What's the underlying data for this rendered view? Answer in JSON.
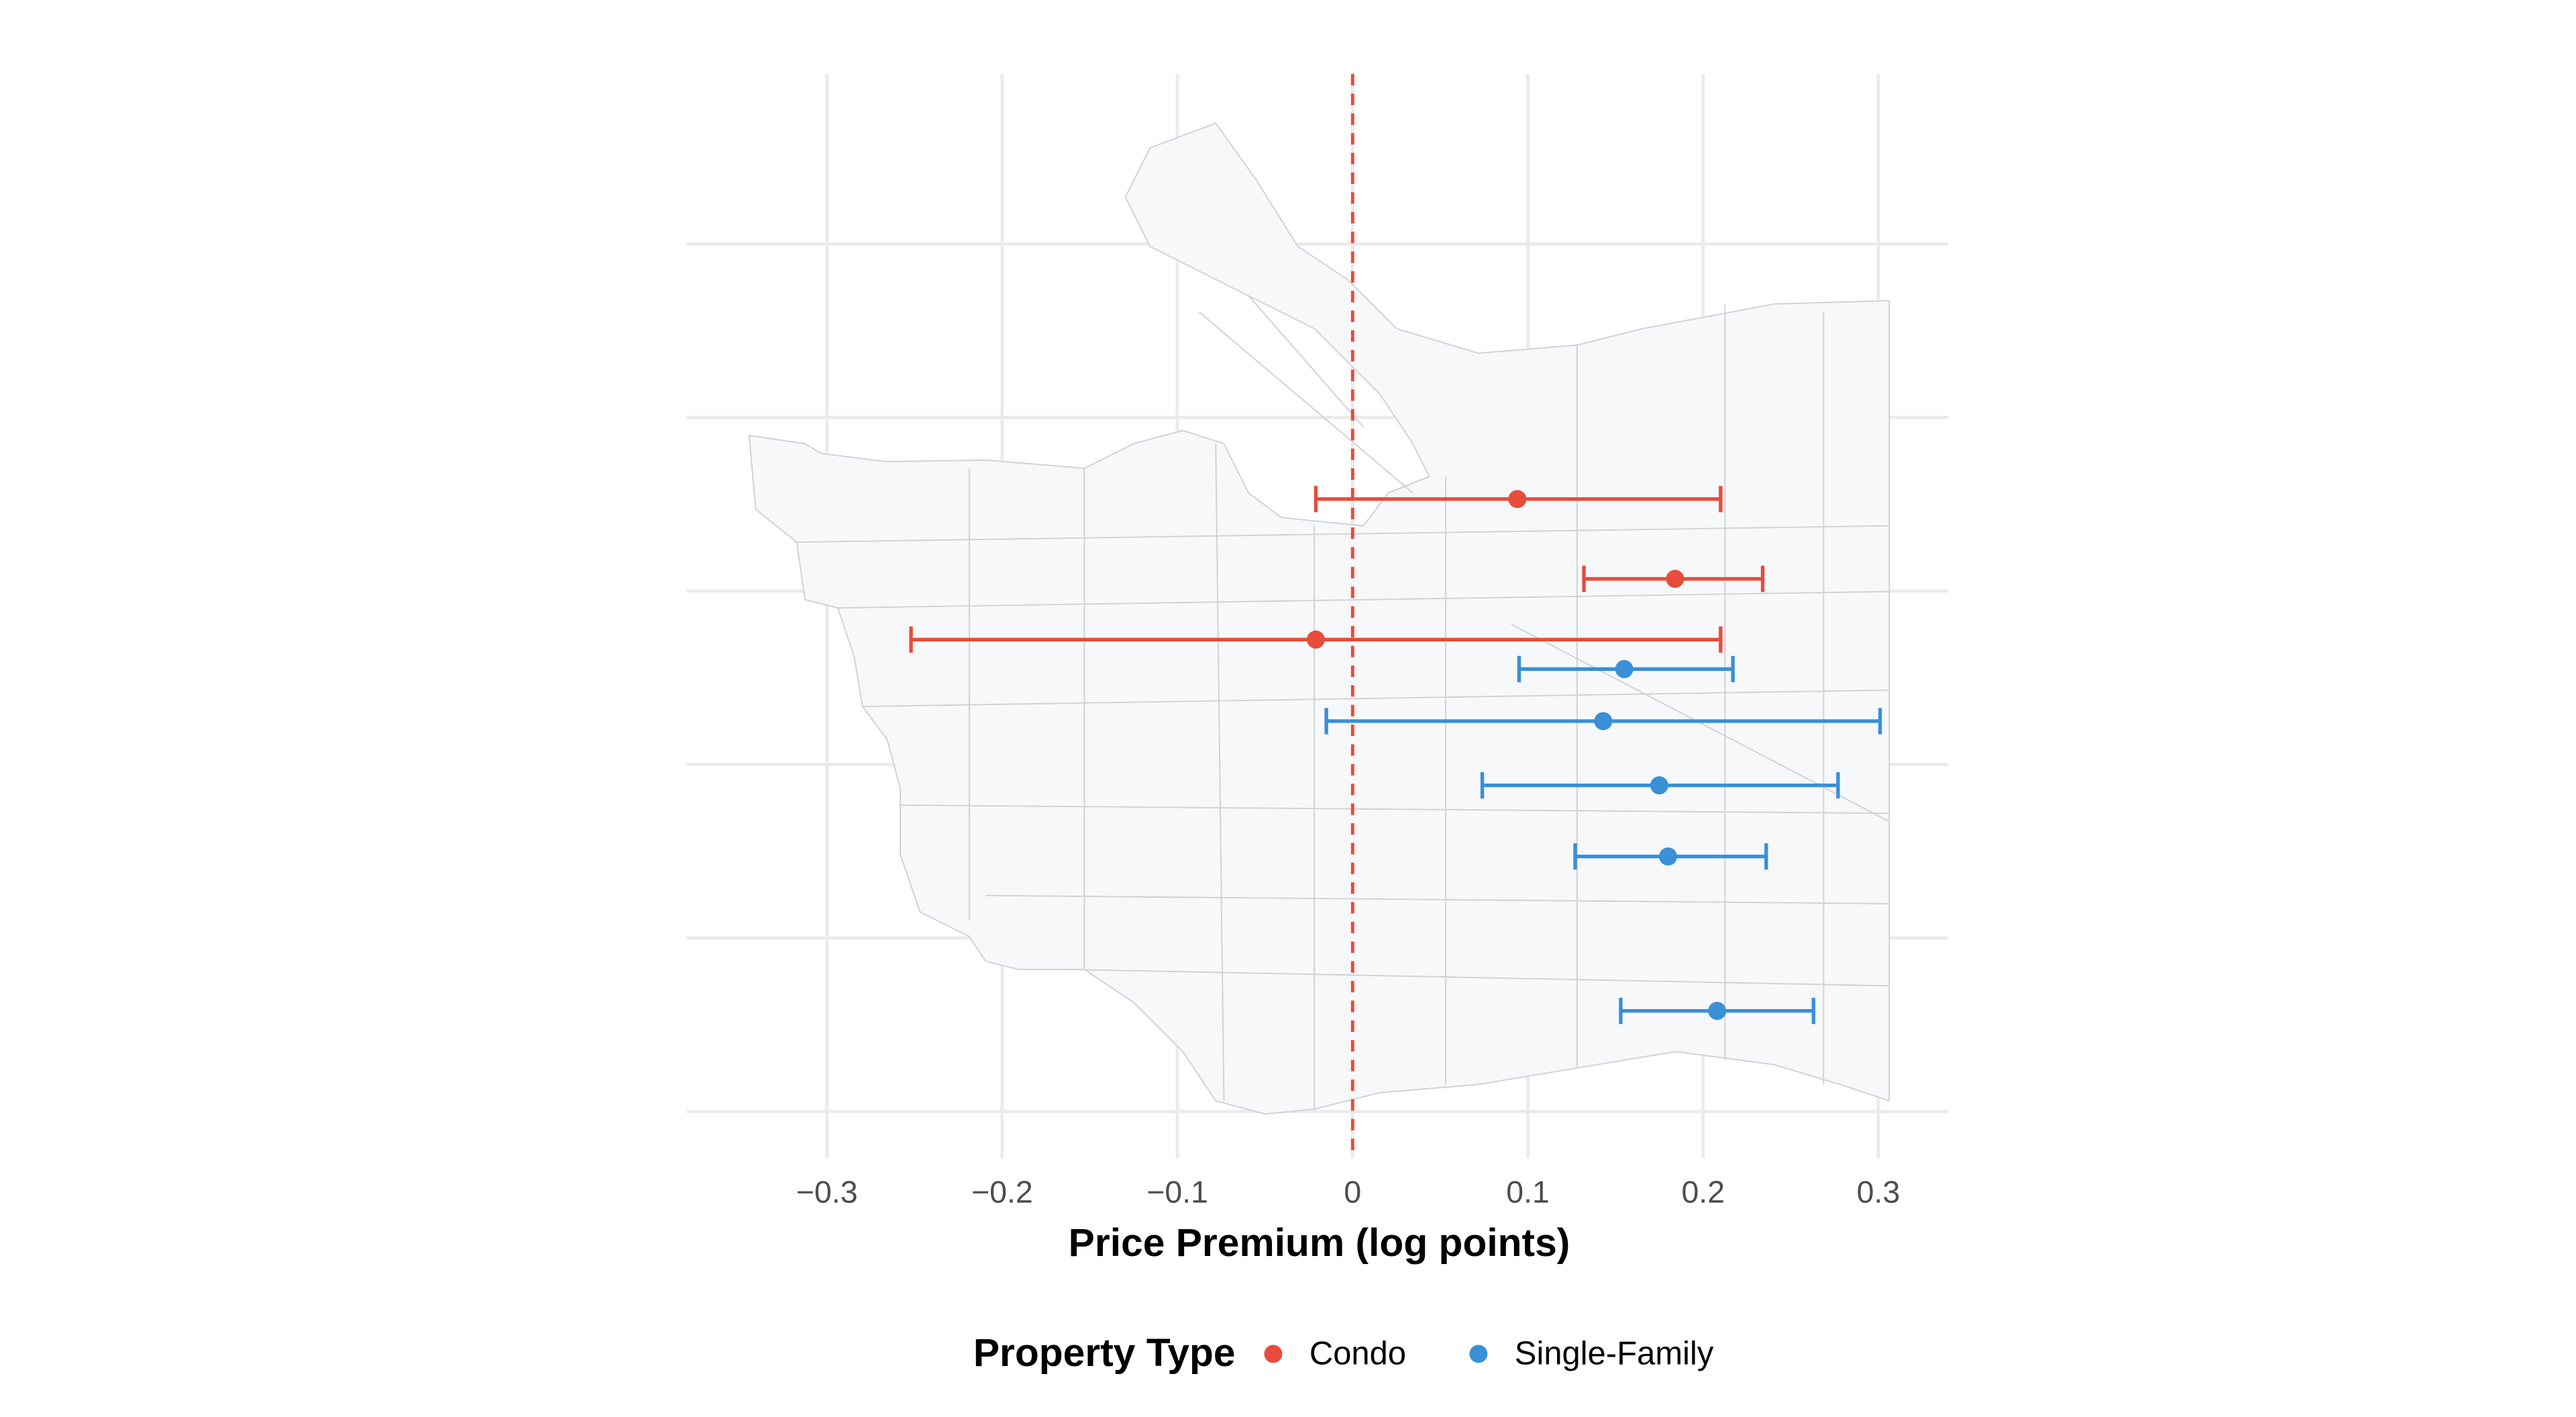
{
  "chart_data": {
    "type": "dot-errorbar",
    "xlabel": "Price Premium (log points)",
    "xlim": [
      -0.38,
      0.34
    ],
    "xticks": [
      {
        "value": -0.3,
        "label": "−0.3"
      },
      {
        "value": -0.2,
        "label": "−0.2"
      },
      {
        "value": -0.1,
        "label": "−0.1"
      },
      0,
      0.1,
      0.2,
      0.3
    ],
    "ylim": [
      -0.27,
      5.98
    ],
    "yticks": [
      0,
      1,
      2,
      3,
      4,
      5
    ],
    "reference_line": 0,
    "grid": true,
    "legend_title": "Property Type",
    "legend_position": "bottom",
    "series": [
      {
        "name": "Condo",
        "color": "#e74c3c",
        "values": [
          0.094,
          0.184,
          -0.021
        ],
        "lower": [
          -0.021,
          0.132,
          -0.252
        ],
        "upper": [
          0.21,
          0.234,
          0.21
        ],
        "y": [
          3.53,
          3.07,
          2.72
        ]
      },
      {
        "name": "Single-Family",
        "color": "#3a8fd6",
        "values": [
          0.155,
          0.143,
          0.175,
          0.18,
          0.208
        ],
        "lower": [
          0.095,
          -0.015,
          0.074,
          0.127,
          0.153
        ],
        "upper": [
          0.217,
          0.301,
          0.277,
          0.236,
          0.263
        ],
        "y": [
          2.55,
          2.25,
          1.88,
          1.47,
          0.58
        ]
      }
    ]
  }
}
